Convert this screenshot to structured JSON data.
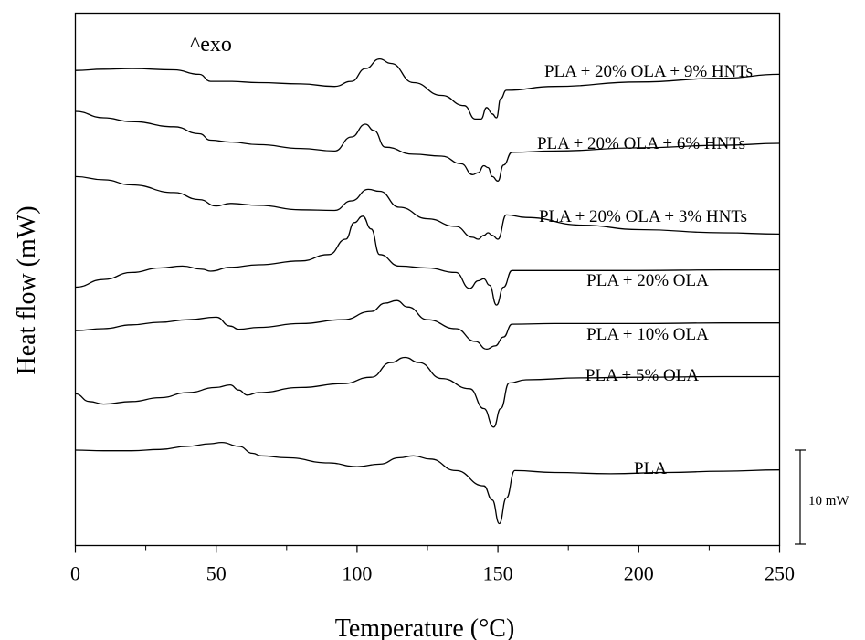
{
  "chart_data": {
    "type": "line",
    "title": "",
    "xlabel": "Temperature (°C)",
    "ylabel": "Heat flow (mW)",
    "xlim": [
      0,
      250
    ],
    "xticks": [
      0,
      50,
      100,
      150,
      200,
      250
    ],
    "y_axis_ticks_shown": false,
    "grid": false,
    "legend": "none (series labelled inline above each curve)",
    "annotation": "^exo",
    "scale_bar": {
      "label": "10 mW",
      "value_mW": 10
    },
    "series": [
      {
        "name": "PLA + 20% OLA + 9% HNTs",
        "color": "#000000",
        "points": [
          [
            0,
            61.4
          ],
          [
            10,
            61.6
          ],
          [
            20,
            61.7
          ],
          [
            35,
            61.5
          ],
          [
            44,
            60.8
          ],
          [
            48,
            59.7
          ],
          [
            55,
            59.7
          ],
          [
            65,
            59.5
          ],
          [
            80,
            59.3
          ],
          [
            92,
            58.9
          ],
          [
            98,
            59.7
          ],
          [
            103,
            61.7
          ],
          [
            108,
            63.2
          ],
          [
            112,
            62.5
          ],
          [
            120,
            59.5
          ],
          [
            130,
            57.5
          ],
          [
            138,
            55.9
          ],
          [
            142,
            53.8
          ],
          [
            144,
            53.8
          ],
          [
            146,
            55.6
          ],
          [
            148,
            54.6
          ],
          [
            149.5,
            54.0
          ],
          [
            151,
            57.0
          ],
          [
            153,
            58.3
          ],
          [
            170,
            58.9
          ],
          [
            200,
            59.6
          ],
          [
            230,
            60.2
          ],
          [
            250,
            60.8
          ]
        ]
      },
      {
        "name": "PLA + 20% OLA + 6% HNTs",
        "color": "#000000",
        "points": [
          [
            0,
            55.0
          ],
          [
            10,
            54.0
          ],
          [
            20,
            53.4
          ],
          [
            35,
            52.6
          ],
          [
            44,
            51.5
          ],
          [
            48,
            50.5
          ],
          [
            55,
            50.2
          ],
          [
            65,
            49.8
          ],
          [
            80,
            49.2
          ],
          [
            92,
            48.8
          ],
          [
            98,
            51.0
          ],
          [
            103,
            53.0
          ],
          [
            106,
            52.0
          ],
          [
            110,
            49.4
          ],
          [
            120,
            48.3
          ],
          [
            130,
            48.0
          ],
          [
            137,
            46.8
          ],
          [
            141,
            45.1
          ],
          [
            143,
            45.4
          ],
          [
            145,
            46.5
          ],
          [
            146.5,
            46.2
          ],
          [
            148,
            44.8
          ],
          [
            150,
            44.1
          ],
          [
            152,
            46.6
          ],
          [
            155,
            48.6
          ],
          [
            170,
            48.8
          ],
          [
            200,
            49.3
          ],
          [
            230,
            49.7
          ],
          [
            250,
            50.0
          ]
        ]
      },
      {
        "name": "PLA + 20% OLA + 3% HNTs",
        "color": "#000000",
        "points": [
          [
            0,
            44.8
          ],
          [
            10,
            44.3
          ],
          [
            20,
            43.5
          ],
          [
            35,
            42.3
          ],
          [
            44,
            41.2
          ],
          [
            50,
            40.2
          ],
          [
            55,
            40.6
          ],
          [
            65,
            40.3
          ],
          [
            80,
            39.6
          ],
          [
            92,
            39.5
          ],
          [
            98,
            41.0
          ],
          [
            104,
            42.8
          ],
          [
            108,
            42.5
          ],
          [
            115,
            40.0
          ],
          [
            125,
            38.2
          ],
          [
            135,
            37.0
          ],
          [
            141,
            35.3
          ],
          [
            143,
            35.0
          ],
          [
            145,
            35.6
          ],
          [
            146.5,
            36.0
          ],
          [
            148,
            35.6
          ],
          [
            150,
            35.0
          ],
          [
            153,
            38.8
          ],
          [
            160,
            38.4
          ],
          [
            180,
            37.2
          ],
          [
            200,
            36.5
          ],
          [
            230,
            36.0
          ],
          [
            250,
            35.8
          ]
        ]
      },
      {
        "name": "PLA + 20% OLA",
        "color": "#000000",
        "points": [
          [
            0,
            27.5
          ],
          [
            10,
            28.7
          ],
          [
            20,
            29.8
          ],
          [
            30,
            30.5
          ],
          [
            38,
            30.8
          ],
          [
            45,
            30.3
          ],
          [
            48,
            30.0
          ],
          [
            55,
            30.6
          ],
          [
            65,
            31.0
          ],
          [
            80,
            31.6
          ],
          [
            90,
            32.6
          ],
          [
            96,
            35.0
          ],
          [
            99,
            37.6
          ],
          [
            102,
            38.6
          ],
          [
            105,
            36.6
          ],
          [
            108,
            32.6
          ],
          [
            115,
            30.8
          ],
          [
            125,
            30.5
          ],
          [
            135,
            29.8
          ],
          [
            140,
            27.3
          ],
          [
            143,
            28.5
          ],
          [
            145,
            28.8
          ],
          [
            147,
            27.8
          ],
          [
            149.5,
            24.7
          ],
          [
            152,
            27.5
          ],
          [
            155,
            30.1
          ],
          [
            170,
            30.1
          ],
          [
            200,
            30.1
          ],
          [
            230,
            30.2
          ],
          [
            250,
            30.2
          ]
        ]
      },
      {
        "name": "PLA + 10% OLA",
        "color": "#000000",
        "points": [
          [
            0,
            20.7
          ],
          [
            10,
            21.0
          ],
          [
            20,
            21.6
          ],
          [
            30,
            22.0
          ],
          [
            40,
            22.4
          ],
          [
            50,
            22.8
          ],
          [
            55,
            21.4
          ],
          [
            58,
            20.9
          ],
          [
            65,
            21.2
          ],
          [
            80,
            21.8
          ],
          [
            95,
            22.4
          ],
          [
            105,
            23.7
          ],
          [
            110,
            25.0
          ],
          [
            114,
            25.4
          ],
          [
            118,
            24.4
          ],
          [
            125,
            22.4
          ],
          [
            135,
            21.0
          ],
          [
            142,
            19.0
          ],
          [
            146,
            17.8
          ],
          [
            149,
            18.3
          ],
          [
            152,
            19.7
          ],
          [
            155,
            21.7
          ],
          [
            170,
            21.8
          ],
          [
            200,
            21.8
          ],
          [
            230,
            21.9
          ],
          [
            250,
            21.9
          ]
        ]
      },
      {
        "name": "PLA + 5% OLA",
        "color": "#000000",
        "points": [
          [
            0,
            10.8
          ],
          [
            5,
            9.6
          ],
          [
            10,
            9.2
          ],
          [
            20,
            9.6
          ],
          [
            30,
            10.2
          ],
          [
            40,
            11.0
          ],
          [
            50,
            11.8
          ],
          [
            55,
            12.2
          ],
          [
            58,
            11.4
          ],
          [
            61,
            10.6
          ],
          [
            65,
            11.0
          ],
          [
            80,
            11.8
          ],
          [
            95,
            12.4
          ],
          [
            105,
            13.4
          ],
          [
            112,
            15.7
          ],
          [
            117,
            16.5
          ],
          [
            122,
            15.7
          ],
          [
            130,
            13.2
          ],
          [
            140,
            11.6
          ],
          [
            145,
            8.5
          ],
          [
            148.5,
            5.6
          ],
          [
            151,
            8.5
          ],
          [
            154,
            12.5
          ],
          [
            160,
            13.0
          ],
          [
            180,
            13.3
          ],
          [
            200,
            13.4
          ],
          [
            230,
            13.5
          ],
          [
            250,
            13.5
          ]
        ]
      },
      {
        "name": "PLA",
        "color": "#000000",
        "points": [
          [
            0,
            2.0
          ],
          [
            10,
            1.9
          ],
          [
            20,
            1.9
          ],
          [
            30,
            2.1
          ],
          [
            40,
            2.6
          ],
          [
            48,
            3.0
          ],
          [
            52,
            3.2
          ],
          [
            58,
            2.6
          ],
          [
            63,
            1.5
          ],
          [
            66,
            1.1
          ],
          [
            75,
            0.8
          ],
          [
            90,
            0.0
          ],
          [
            100,
            -0.6
          ],
          [
            108,
            -0.2
          ],
          [
            115,
            0.8
          ],
          [
            120,
            1.1
          ],
          [
            126,
            0.6
          ],
          [
            135,
            -1.2
          ],
          [
            145,
            -3.6
          ],
          [
            148,
            -5.8
          ],
          [
            150.5,
            -9.5
          ],
          [
            153,
            -5.5
          ],
          [
            156,
            -1.2
          ],
          [
            170,
            -1.5
          ],
          [
            190,
            -1.7
          ],
          [
            210,
            -1.5
          ],
          [
            230,
            -1.3
          ],
          [
            250,
            -1.1
          ]
        ]
      }
    ]
  }
}
